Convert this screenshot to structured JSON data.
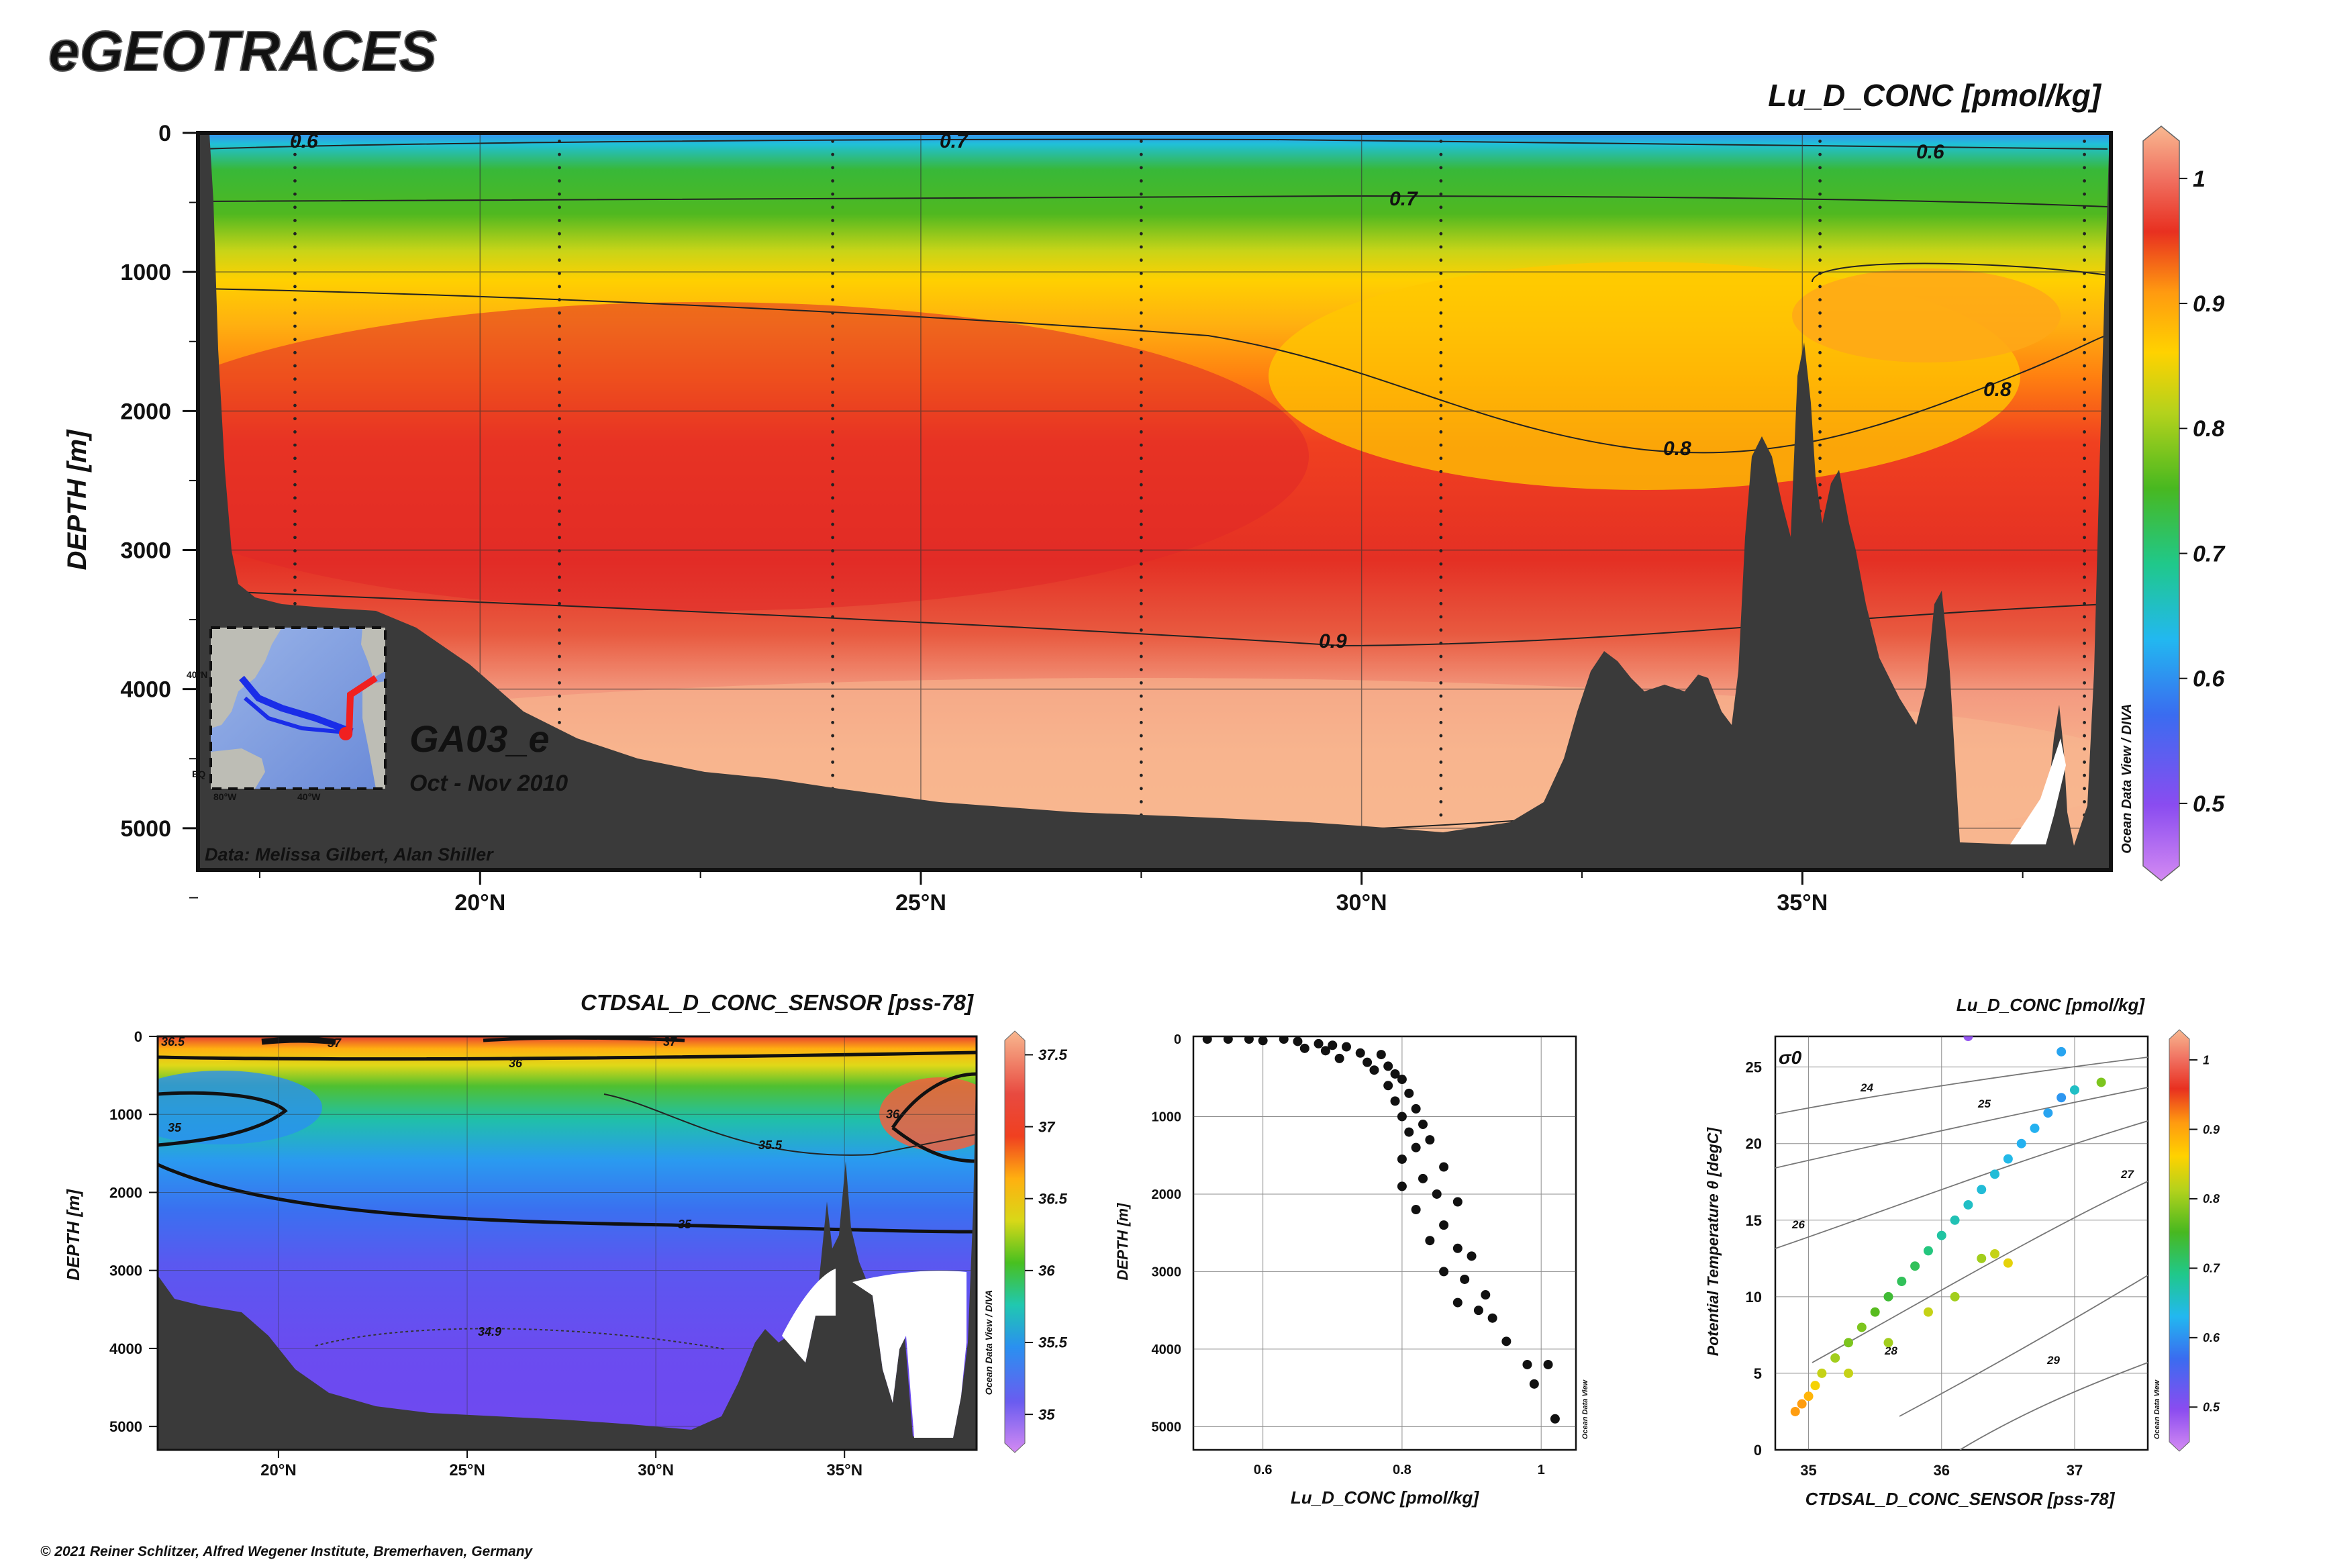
{
  "header": {
    "logo": "eGEOTRACES",
    "copyright": "© 2021 Reiner Schlitzer, Alfred Wegener Institute, Bremerhaven, Germany"
  },
  "colors": {
    "terrain": "#3a3a3a",
    "grid": "#333333",
    "scale_top": "#f8b890",
    "scale_bottom": "#d48af2"
  },
  "main_section": {
    "title": "Lu_D_CONC [pmol/kg]",
    "cruise": "GA03_e",
    "date": "Oct - Nov 2010",
    "credit": "Data: Melissa Gilbert, Alan Shiller",
    "watermark": "Ocean Data View / DIVA",
    "ylabel": "DEPTH [m]",
    "yticks": [
      "0",
      "1000",
      "2000",
      "3000",
      "4000",
      "5000"
    ],
    "xticks": [
      "20°N",
      "25°N",
      "30°N",
      "35°N"
    ],
    "scale_ticks": [
      "1",
      "0.9",
      "0.8",
      "0.7",
      "0.6",
      "0.5"
    ],
    "contour_labels": [
      "0.6",
      "0.7",
      "0.7",
      "0.6",
      "0.8",
      "0.8",
      "0.9"
    ],
    "inset_labels": [
      "40°N",
      "EQ",
      "80°W",
      "40°W"
    ]
  },
  "chart_data": [
    {
      "type": "heatmap",
      "title": "Lu_D_CONC [pmol/kg]",
      "ylabel": "DEPTH [m]",
      "x_range": [
        16.8,
        38.5
      ],
      "ylim": [
        0,
        5300
      ],
      "color_range": [
        0.45,
        1.03
      ],
      "contour_levels": [
        0.6,
        0.7,
        0.8,
        0.9
      ]
    },
    {
      "type": "heatmap",
      "title": "CTDSAL_D_CONC_SENSOR [pss-78]",
      "ylabel": "DEPTH [m]",
      "xticks": [
        "20°N",
        "25°N",
        "30°N",
        "35°N"
      ],
      "yticks": [
        "0",
        "1000",
        "2000",
        "3000",
        "4000",
        "5000"
      ],
      "scale_ticks": [
        "37.5",
        "37",
        "36.5",
        "36",
        "35.5",
        "35"
      ],
      "contour_labels": [
        "36.5",
        "37",
        "37",
        "36",
        "36",
        "35",
        "35.5",
        "35",
        "34.9"
      ],
      "watermark": "Ocean Data View / DIVA",
      "color_range": [
        34.8,
        37.5
      ]
    },
    {
      "type": "scatter",
      "xlabel": "Lu_D_CONC [pmol/kg]",
      "ylabel": "DEPTH [m]",
      "xticks": [
        "0.6",
        "0.8",
        "1"
      ],
      "yticks": [
        "0",
        "1000",
        "2000",
        "3000",
        "4000",
        "5000"
      ],
      "watermark": "Ocean Data View",
      "xlim": [
        0.5,
        1.05
      ],
      "ylim": [
        0,
        5300
      ],
      "points": [
        [
          0.52,
          0
        ],
        [
          0.55,
          0
        ],
        [
          0.58,
          0
        ],
        [
          0.6,
          20
        ],
        [
          0.63,
          0
        ],
        [
          0.65,
          30
        ],
        [
          0.68,
          60
        ],
        [
          0.7,
          80
        ],
        [
          0.72,
          100
        ],
        [
          0.66,
          120
        ],
        [
          0.69,
          150
        ],
        [
          0.74,
          180
        ],
        [
          0.77,
          200
        ],
        [
          0.71,
          250
        ],
        [
          0.75,
          300
        ],
        [
          0.78,
          350
        ],
        [
          0.76,
          400
        ],
        [
          0.79,
          450
        ],
        [
          0.8,
          520
        ],
        [
          0.78,
          600
        ],
        [
          0.81,
          700
        ],
        [
          0.79,
          800
        ],
        [
          0.82,
          900
        ],
        [
          0.8,
          1000
        ],
        [
          0.83,
          1100
        ],
        [
          0.81,
          1200
        ],
        [
          0.84,
          1300
        ],
        [
          0.82,
          1400
        ],
        [
          0.8,
          1550
        ],
        [
          0.86,
          1650
        ],
        [
          0.83,
          1800
        ],
        [
          0.8,
          1900
        ],
        [
          0.85,
          2000
        ],
        [
          0.88,
          2100
        ],
        [
          0.82,
          2200
        ],
        [
          0.86,
          2400
        ],
        [
          0.84,
          2600
        ],
        [
          0.88,
          2700
        ],
        [
          0.9,
          2800
        ],
        [
          0.86,
          3000
        ],
        [
          0.89,
          3100
        ],
        [
          0.92,
          3300
        ],
        [
          0.88,
          3400
        ],
        [
          0.91,
          3500
        ],
        [
          0.93,
          3600
        ],
        [
          0.95,
          3900
        ],
        [
          0.98,
          4200
        ],
        [
          0.99,
          4450
        ],
        [
          1.01,
          4200
        ],
        [
          1.02,
          4900
        ]
      ]
    },
    {
      "type": "scatter",
      "title": "Lu_D_CONC [pmol/kg]",
      "xlabel": "CTDSAL_D_CONC_SENSOR [pss-78]",
      "ylabel": "Potential Temperature θ [degC]",
      "xticks": [
        "35",
        "36",
        "37"
      ],
      "yticks": [
        "0",
        "5",
        "10",
        "15",
        "20",
        "25"
      ],
      "scale_ticks": [
        "1",
        "0.9",
        "0.8",
        "0.7",
        "0.6",
        "0.5"
      ],
      "sigma_label": "σ0",
      "sigma_contours": [
        "24",
        "25",
        "26",
        "27",
        "28",
        "29"
      ],
      "watermark": "Ocean Data View",
      "xlim": [
        34.75,
        37.55
      ],
      "ylim": [
        0,
        27
      ],
      "points": [
        [
          34.9,
          2.5,
          0.9
        ],
        [
          34.95,
          3,
          0.9
        ],
        [
          35,
          3.5,
          0.88
        ],
        [
          35.05,
          4.2,
          0.85
        ],
        [
          35.1,
          5,
          0.82
        ],
        [
          35.2,
          6,
          0.8
        ],
        [
          35.3,
          7,
          0.78
        ],
        [
          35.4,
          8,
          0.78
        ],
        [
          35.5,
          9,
          0.76
        ],
        [
          35.6,
          10,
          0.74
        ],
        [
          35.7,
          11,
          0.72
        ],
        [
          35.8,
          12,
          0.72
        ],
        [
          35.9,
          13,
          0.7
        ],
        [
          36,
          14,
          0.68
        ],
        [
          36.1,
          15,
          0.67
        ],
        [
          36.2,
          16,
          0.66
        ],
        [
          36.3,
          17,
          0.65
        ],
        [
          36.4,
          18,
          0.65
        ],
        [
          36.5,
          19,
          0.64
        ],
        [
          36.6,
          20,
          0.63
        ],
        [
          36.7,
          21,
          0.63
        ],
        [
          36.8,
          22,
          0.62
        ],
        [
          36.9,
          23,
          0.61
        ],
        [
          37,
          23.5,
          0.66
        ],
        [
          37.2,
          24,
          0.78
        ],
        [
          36.3,
          12.5,
          0.8
        ],
        [
          36.4,
          12.8,
          0.82
        ],
        [
          36.5,
          12.2,
          0.84
        ],
        [
          35.9,
          9,
          0.82
        ],
        [
          36.1,
          10,
          0.8
        ],
        [
          35.3,
          5,
          0.82
        ],
        [
          35.6,
          7,
          0.8
        ],
        [
          36.2,
          27,
          0.5
        ],
        [
          36.9,
          26,
          0.62
        ]
      ]
    }
  ]
}
